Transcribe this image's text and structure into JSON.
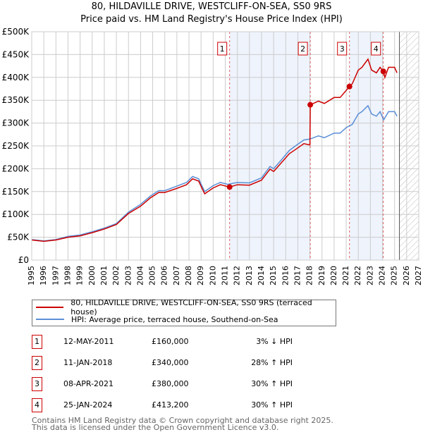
{
  "chart_data": {
    "type": "line",
    "title": "80, HILDAVILLE DRIVE, WESTCLIFF-ON-SEA, SS0 9RS",
    "subtitle": "Price paid vs. HM Land Registry's House Price Index (HPI)",
    "xlim": [
      1995,
      2027
    ],
    "ylim": [
      0,
      500000
    ],
    "x_ticks": [
      "1995",
      "1996",
      "1997",
      "1998",
      "1999",
      "2000",
      "2001",
      "2002",
      "2003",
      "2004",
      "2005",
      "2006",
      "2007",
      "2008",
      "2009",
      "2010",
      "2011",
      "2012",
      "2013",
      "2014",
      "2015",
      "2016",
      "2017",
      "2018",
      "2019",
      "2020",
      "2021",
      "2022",
      "2023",
      "2024",
      "2025",
      "2026",
      "2027"
    ],
    "y_ticks": [
      {
        "v": 0,
        "label": "£0"
      },
      {
        "v": 50000,
        "label": "£50K"
      },
      {
        "v": 100000,
        "label": "£100K"
      },
      {
        "v": 150000,
        "label": "£150K"
      },
      {
        "v": 200000,
        "label": "£200K"
      },
      {
        "v": 250000,
        "label": "£250K"
      },
      {
        "v": 300000,
        "label": "£300K"
      },
      {
        "v": 350000,
        "label": "£350K"
      },
      {
        "v": 400000,
        "label": "£400K"
      },
      {
        "v": 450000,
        "label": "£450K"
      },
      {
        "v": 500000,
        "label": "£500K"
      }
    ],
    "grid": true,
    "forecast_hatch_from": 2025.4,
    "shaded_ranges": [
      [
        2011.36,
        2018.03
      ],
      [
        2021.27,
        2024.07
      ]
    ],
    "series": [
      {
        "name": "80, HILDAVILLE DRIVE, WESTCLIFF-ON-SEA, SS0 9RS (terraced house)",
        "color": "#cc0000",
        "x": [
          1995,
          1996,
          1997,
          1998,
          1999,
          2000,
          2001,
          2002,
          2003,
          2004,
          2004.8,
          2005.5,
          2006,
          2007,
          2007.8,
          2008.3,
          2008.8,
          2009.3,
          2010,
          2010.6,
          2011.36,
          2012,
          2013,
          2014,
          2014.7,
          2015,
          2015.5,
          2016.3,
          2016.8,
          2017.5,
          2018.0,
          2018.03,
          2018.7,
          2019.2,
          2020,
          2020.5,
          2021.27,
          2021.5,
          2022,
          2022.3,
          2022.8,
          2023.1,
          2023.5,
          2023.8,
          2024.07,
          2024.2,
          2024.5,
          2025,
          2025.2
        ],
        "y": [
          44,
          41,
          44,
          50,
          53,
          60,
          68,
          78,
          102,
          118,
          136,
          148,
          148,
          157,
          165,
          178,
          173,
          145,
          158,
          165,
          160,
          165,
          164,
          175,
          199,
          194,
          209,
          233,
          242,
          255,
          252,
          340,
          348,
          343,
          356,
          356,
          380,
          386,
          416,
          422,
          440,
          416,
          410,
          422,
          413,
          400,
          422,
          422,
          410
        ]
      },
      {
        "name": "HPI: Average price, terraced house, Southend-on-Sea",
        "color": "#5b8fd6",
        "x": [
          1995,
          1996,
          1997,
          1998,
          1999,
          2000,
          2001,
          2002,
          2003,
          2004,
          2004.8,
          2005.5,
          2006,
          2007,
          2007.8,
          2008.3,
          2008.8,
          2009.3,
          2010,
          2010.6,
          2011.2,
          2012,
          2013,
          2014,
          2014.7,
          2015,
          2015.5,
          2016.3,
          2016.8,
          2017.5,
          2018,
          2018.7,
          2019.2,
          2020,
          2020.5,
          2021,
          2021.5,
          2022,
          2022.3,
          2022.8,
          2023.1,
          2023.5,
          2023.8,
          2024.1,
          2024.5,
          2025,
          2025.2
        ],
        "y": [
          45,
          42,
          45,
          52,
          55,
          62,
          70,
          80,
          105,
          122,
          140,
          152,
          152,
          162,
          170,
          183,
          178,
          150,
          163,
          170,
          166,
          170,
          169,
          180,
          205,
          200,
          215,
          240,
          250,
          263,
          265,
          272,
          268,
          278,
          278,
          290,
          297,
          320,
          325,
          338,
          320,
          315,
          325,
          307,
          325,
          325,
          315
        ]
      }
    ],
    "y_unit": "thousands GBP",
    "sales": [
      {
        "n": "1",
        "x": 2011.36,
        "y": 160,
        "date": "12-MAY-2011",
        "price": "£160,000",
        "hpi": "3% ↓ HPI"
      },
      {
        "n": "2",
        "x": 2018.03,
        "y": 340,
        "date": "11-JAN-2018",
        "price": "£340,000",
        "hpi": "28% ↑ HPI"
      },
      {
        "n": "3",
        "x": 2021.27,
        "y": 380,
        "date": "08-APR-2021",
        "price": "£380,000",
        "hpi": "30% ↑ HPI"
      },
      {
        "n": "4",
        "x": 2024.07,
        "y": 413.2,
        "date": "25-JAN-2024",
        "price": "£413,200",
        "hpi": "30% ↑ HPI"
      }
    ]
  },
  "legend": {
    "red": "80, HILDAVILLE DRIVE, WESTCLIFF-ON-SEA, SS0 9RS (terraced house)",
    "blue": "HPI: Average price, terraced house, Southend-on-Sea"
  },
  "footer": {
    "line1": "Contains HM Land Registry data © Crown copyright and database right 2025.",
    "line2": "This data is licensed under the Open Government Licence v3.0."
  }
}
